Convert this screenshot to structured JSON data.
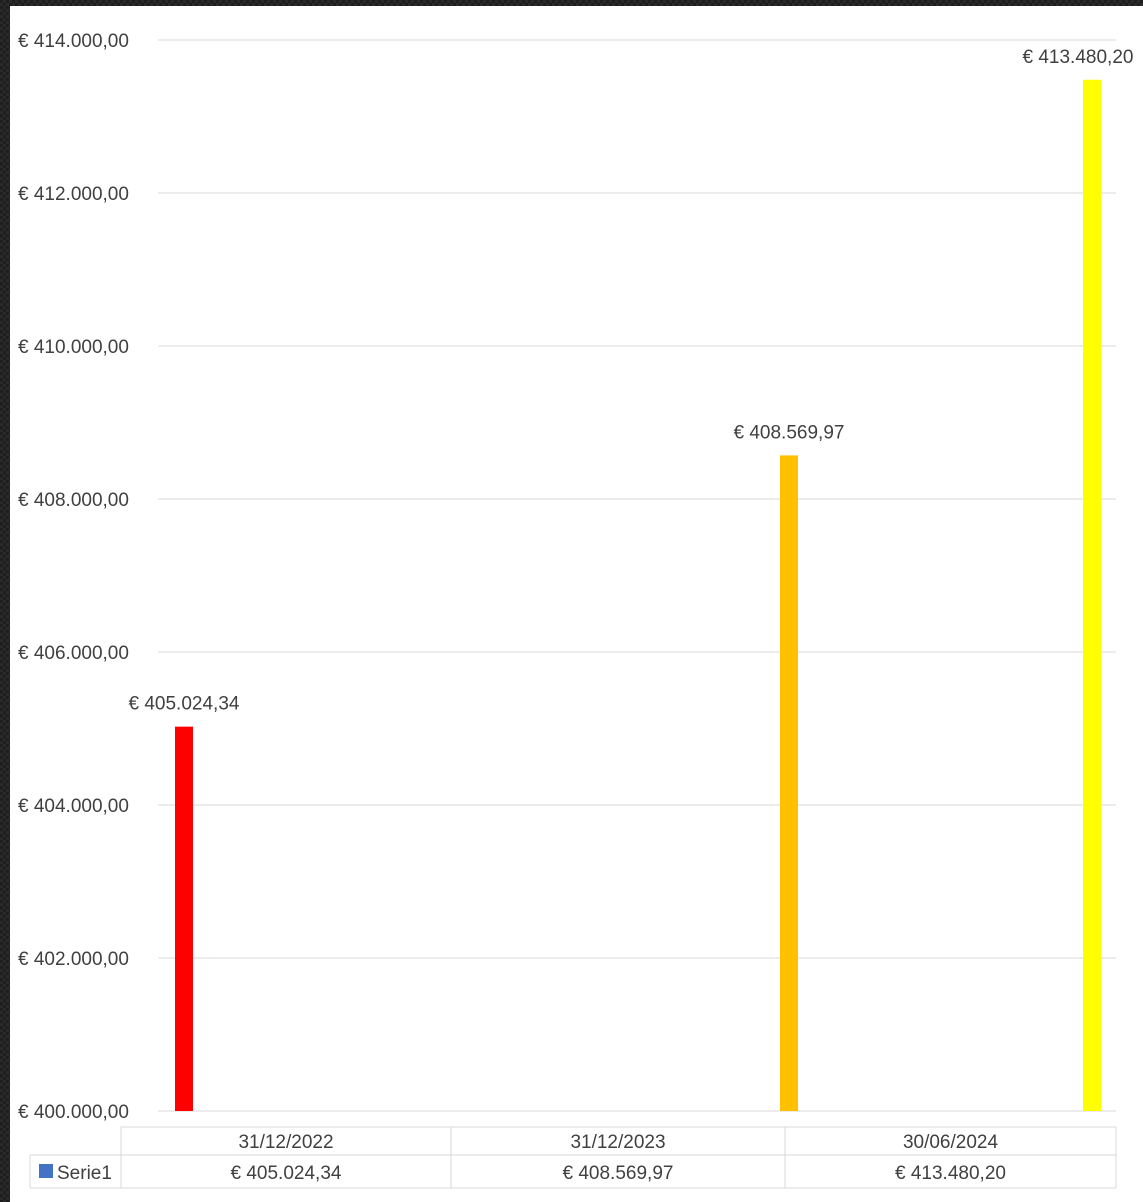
{
  "chart_data": {
    "type": "bar",
    "categories": [
      "31/12/2022",
      "31/12/2023",
      "30/06/2024"
    ],
    "series": [
      {
        "name": "Serie1",
        "values": [
          405024.34,
          408569.97,
          413480.2
        ],
        "value_labels": [
          "€ 405.024,34",
          "€ 408.569,97",
          "€ 413.480,20"
        ],
        "colors": [
          "#ff0000",
          "#ffc000",
          "#ffff00"
        ],
        "legend_color": "#4472c4"
      }
    ],
    "ylim": [
      400000,
      414000
    ],
    "yticks": [
      400000,
      402000,
      404000,
      406000,
      408000,
      410000,
      412000,
      414000
    ],
    "ytick_labels": [
      "€ 400.000,00",
      "€ 402.000,00",
      "€ 404.000,00",
      "€ 406.000,00",
      "€ 408.000,00",
      "€ 410.000,00",
      "€ 412.000,00",
      "€ 414.000,00"
    ],
    "grid": true,
    "data_table": true,
    "title": "",
    "xlabel": "",
    "ylabel": ""
  }
}
